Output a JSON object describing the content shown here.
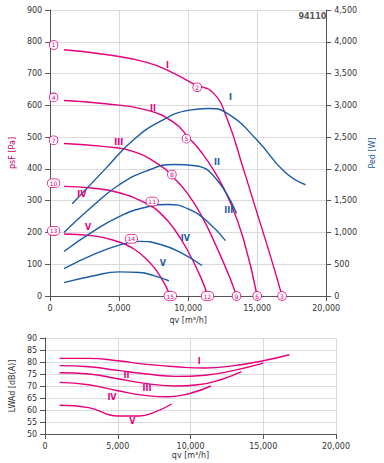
{
  "chart_data": [
    {
      "type": "line",
      "xlabel": "qv [m³/h]",
      "ylabel": "psF [Pa]",
      "y2label": "Ped [W]",
      "xlim": [
        0,
        20000
      ],
      "xticks": [
        0,
        {
          "value": 5000,
          "label": "5,000"
        },
        {
          "value": 10000,
          "label": "10,000"
        },
        {
          "value": 15000,
          "label": "15,000"
        },
        {
          "value": 20000,
          "label": "20,000"
        }
      ],
      "ylim": [
        0,
        900
      ],
      "yticks": [
        0,
        100,
        200,
        300,
        400,
        500,
        600,
        700,
        800,
        900
      ],
      "y2lim": [
        0,
        4500
      ],
      "y2ticks": [
        0,
        500,
        {
          "value": 1000,
          "label": "1,000"
        },
        {
          "value": 1500,
          "label": "1,500"
        },
        {
          "value": 2000,
          "label": "2,000"
        },
        {
          "value": 2500,
          "label": "2,500"
        },
        {
          "value": 3000,
          "label": "3,000"
        },
        {
          "value": 3500,
          "label": "3,500"
        },
        {
          "value": 4000,
          "label": "4,000"
        },
        {
          "value": 4500,
          "label": "4,500"
        }
      ],
      "grid": true,
      "series": [
        {
          "name": "I",
          "color": "#e5007d",
          "x": [
            1000,
            4000,
            7000,
            9000,
            10500,
            11800,
            12800,
            14000,
            15000,
            16000,
            16800
          ],
          "values": [
            775,
            760,
            735,
            700,
            665,
            640,
            560,
            400,
            260,
            120,
            0
          ],
          "label_at": [
            8500,
            725
          ]
        },
        {
          "name": "II",
          "color": "#e5007d",
          "x": [
            1000,
            4000,
            7000,
            9000,
            10000,
            11000,
            12000,
            13000,
            14000,
            15000
          ],
          "values": [
            615,
            605,
            585,
            545,
            500,
            450,
            385,
            300,
            180,
            0
          ],
          "label_at": [
            7450,
            590
          ]
        },
        {
          "name": "III",
          "color": "#e5007d",
          "x": [
            1000,
            4000,
            6000,
            8000,
            9000,
            10000,
            11000,
            12000,
            13000,
            13500
          ],
          "values": [
            480,
            470,
            455,
            410,
            370,
            320,
            250,
            160,
            60,
            0
          ],
          "label_at": [
            4970,
            482
          ]
        },
        {
          "name": "IV",
          "color": "#e5007d",
          "x": [
            1000,
            3000,
            5000,
            7000,
            8000,
            9000,
            10000,
            11000,
            11400
          ],
          "values": [
            345,
            340,
            325,
            290,
            260,
            210,
            140,
            50,
            0
          ],
          "label_at": [
            2300,
            318
          ]
        },
        {
          "name": "V",
          "color": "#e5007d",
          "x": [
            1000,
            3000,
            5000,
            6000,
            7000,
            8000,
            8700
          ],
          "values": [
            195,
            190,
            170,
            150,
            115,
            60,
            0
          ],
          "label_at": [
            2750,
            217
          ]
        },
        {
          "name": "I",
          "color": "#1c5aa6",
          "axis": "y2",
          "x": [
            1600,
            4000,
            6000,
            8000,
            10000,
            11500,
            13000,
            15000,
            17000,
            18500
          ],
          "values": [
            1450,
            2000,
            2450,
            2750,
            2920,
            2950,
            2850,
            2450,
            1950,
            1750
          ],
          "label_at": [
            13070,
            3120
          ]
        },
        {
          "name": "II",
          "color": "#1c5aa6",
          "axis": "y2",
          "x": [
            1000,
            3000,
            5000,
            7000,
            9000,
            10500,
            12000,
            13500
          ],
          "values": [
            1000,
            1400,
            1750,
            1970,
            2070,
            2050,
            1850,
            1300
          ],
          "label_at": [
            12090,
            2095
          ]
        },
        {
          "name": "III",
          "color": "#1c5aa6",
          "axis": "y2",
          "x": [
            1000,
            3000,
            5000,
            7000,
            8500,
            10000,
            11500,
            12700
          ],
          "values": [
            700,
            1000,
            1250,
            1400,
            1440,
            1370,
            1150,
            870
          ],
          "label_at": [
            12940,
            1345
          ]
        },
        {
          "name": "IV",
          "color": "#1c5aa6",
          "axis": "y2",
          "x": [
            1000,
            3000,
            5000,
            6500,
            8000,
            9500,
            11000
          ],
          "values": [
            430,
            640,
            800,
            860,
            810,
            680,
            480
          ],
          "label_at": [
            9800,
            900
          ]
        },
        {
          "name": "V",
          "color": "#1c5aa6",
          "axis": "y2",
          "x": [
            1000,
            3000,
            5000,
            6500,
            7500,
            8600
          ],
          "values": [
            210,
            310,
            380,
            370,
            320,
            240
          ],
          "label_at": [
            8170,
            505
          ]
        }
      ],
      "annotations": [
        {
          "text": "94110",
          "x": 19000,
          "y": 880
        },
        {
          "text": "1",
          "x": 250,
          "y": 790,
          "marker": "circle"
        },
        {
          "text": "2",
          "x": 10650,
          "y": 657,
          "marker": "circle"
        },
        {
          "text": "3",
          "x": 16800,
          "y": 0,
          "marker": "circle"
        },
        {
          "text": "4",
          "x": 250,
          "y": 625,
          "marker": "circle"
        },
        {
          "text": "5",
          "x": 9870,
          "y": 495,
          "marker": "circle"
        },
        {
          "text": "6",
          "x": 15000,
          "y": 0,
          "marker": "circle"
        },
        {
          "text": "7",
          "x": 250,
          "y": 490,
          "marker": "circle"
        },
        {
          "text": "8",
          "x": 8820,
          "y": 382,
          "marker": "circle"
        },
        {
          "text": "9",
          "x": 13500,
          "y": 0,
          "marker": "circle"
        },
        {
          "text": "10",
          "x": 250,
          "y": 355,
          "marker": "circle"
        },
        {
          "text": "11",
          "x": 7390,
          "y": 297,
          "marker": "circle"
        },
        {
          "text": "12",
          "x": 11400,
          "y": 0,
          "marker": "circle"
        },
        {
          "text": "13",
          "x": 250,
          "y": 205,
          "marker": "circle"
        },
        {
          "text": "14",
          "x": 5880,
          "y": 180,
          "marker": "circle"
        },
        {
          "text": "15",
          "x": 8700,
          "y": 0,
          "marker": "circle"
        }
      ]
    },
    {
      "type": "line",
      "xlabel": "qv [m³/h]",
      "ylabel": "LWAd [dB(A)]",
      "xlim": [
        0,
        20000
      ],
      "xticks": [
        0,
        {
          "value": 5000,
          "label": "5,000"
        },
        {
          "value": 10000,
          "label": "10,000"
        },
        {
          "value": 15000,
          "label": "15,000"
        },
        {
          "value": 20000,
          "label": "20,000"
        }
      ],
      "ylim": [
        50,
        90
      ],
      "yticks": [
        50,
        55,
        60,
        65,
        70,
        75,
        80,
        85,
        90
      ],
      "grid": true,
      "series": [
        {
          "name": "I",
          "color": "#e5007d",
          "x": [
            1000,
            3000,
            5000,
            7000,
            9000,
            11000,
            13000,
            15000,
            16800
          ],
          "values": [
            81.5,
            81.5,
            80.5,
            79,
            78,
            77.5,
            78.5,
            80.5,
            83
          ],
          "label_at": [
            10600,
            80.3
          ]
        },
        {
          "name": "II",
          "color": "#e5007d",
          "x": [
            1000,
            3000,
            5000,
            7000,
            9000,
            11000,
            13000,
            15000
          ],
          "values": [
            78.5,
            78,
            76.5,
            75,
            74,
            74.5,
            76.5,
            79.5
          ],
          "label_at": [
            5600,
            74.5
          ]
        },
        {
          "name": "III",
          "color": "#e5007d",
          "x": [
            1000,
            3000,
            5000,
            7000,
            9000,
            10500,
            12000,
            13500
          ],
          "values": [
            75.5,
            75,
            73,
            71,
            70,
            70.5,
            72.5,
            76
          ],
          "label_at": [
            7000,
            68.8
          ]
        },
        {
          "name": "IV",
          "color": "#e5007d",
          "x": [
            1000,
            3000,
            5000,
            7000,
            8500,
            10000,
            11400
          ],
          "values": [
            71.5,
            70.5,
            68,
            66,
            65.5,
            67,
            70
          ],
          "label_at": [
            4600,
            65.3
          ]
        },
        {
          "name": "V",
          "color": "#e5007d",
          "x": [
            1000,
            3000,
            5000,
            6500,
            7500,
            8700
          ],
          "values": [
            62,
            61,
            57.5,
            57.5,
            59,
            62.5
          ],
          "label_at": [
            6000,
            55.2
          ]
        }
      ]
    }
  ]
}
